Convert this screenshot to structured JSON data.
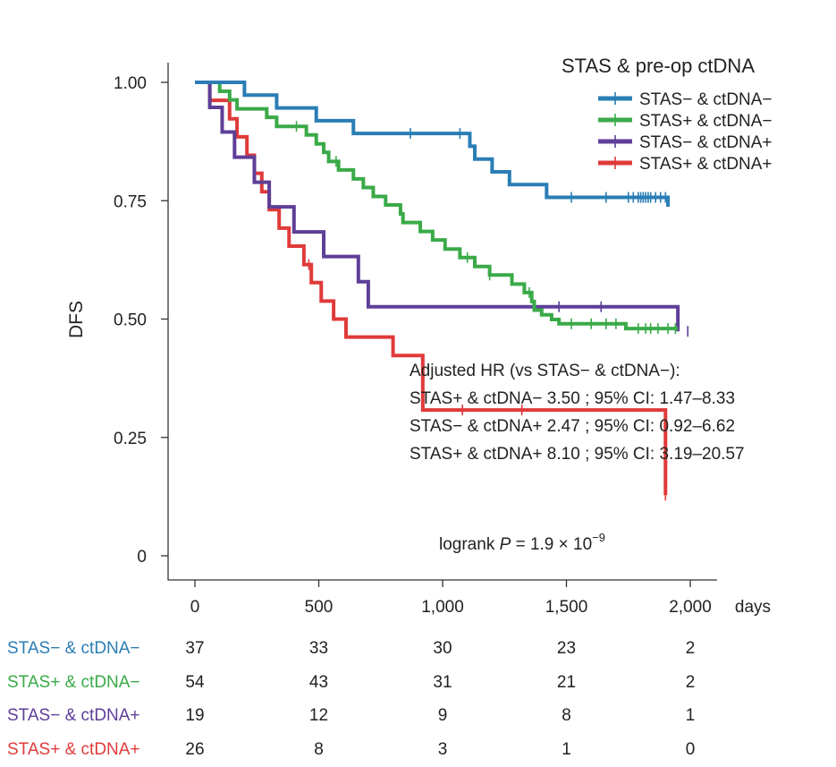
{
  "chart_data": {
    "type": "line",
    "subtype": "kaplan-meier",
    "title": "",
    "xlabel": "days",
    "ylabel": "DFS",
    "xlim": [
      -40,
      2100
    ],
    "ylim": [
      0,
      1.0
    ],
    "x_ticks": [
      0,
      500,
      1000,
      1500,
      2000
    ],
    "x_tick_labels": [
      "0",
      "500",
      "1,000",
      "1,500",
      "2,000"
    ],
    "y_ticks": [
      0,
      0.25,
      0.5,
      0.75,
      1.0
    ],
    "y_tick_labels": [
      "0",
      "0.25",
      "0.50",
      "0.75",
      "1.00"
    ],
    "legend": {
      "title": "STAS & pre-op ctDNA",
      "position": "top-right"
    },
    "series": [
      {
        "name": "STAS− & ctDNA−",
        "color": "#2a7db5",
        "times": [
          0,
          200,
          330,
          490,
          640,
          1110,
          1130,
          1200,
          1270,
          1420,
          1910
        ],
        "values": [
          1.0,
          0.973,
          0.946,
          0.919,
          0.892,
          0.865,
          0.838,
          0.811,
          0.784,
          0.757,
          0.737
        ],
        "censor_times": [
          870,
          1070,
          1520,
          1660,
          1750,
          1770,
          1790,
          1800,
          1810,
          1820,
          1830,
          1840,
          1860,
          1880,
          1900
        ]
      },
      {
        "name": "STAS+ & ctDNA−",
        "color": "#3aaa48",
        "times": [
          0,
          100,
          140,
          170,
          290,
          330,
          450,
          490,
          520,
          540,
          580,
          640,
          680,
          720,
          770,
          830,
          840,
          910,
          960,
          1010,
          1070,
          1130,
          1190,
          1280,
          1330,
          1360,
          1370,
          1400,
          1440,
          1470,
          1500,
          1520,
          1660,
          1740,
          1770,
          1950
        ],
        "values": [
          1.0,
          0.981,
          0.963,
          0.944,
          0.926,
          0.907,
          0.889,
          0.87,
          0.852,
          0.833,
          0.815,
          0.796,
          0.778,
          0.759,
          0.741,
          0.722,
          0.704,
          0.685,
          0.667,
          0.648,
          0.63,
          0.611,
          0.593,
          0.574,
          0.556,
          0.537,
          0.519,
          0.509,
          0.499,
          0.49,
          0.49,
          0.49,
          0.49,
          0.48,
          0.48,
          0.48
        ],
        "censor_times": [
          410,
          570,
          1100,
          1190,
          1350,
          1520,
          1600,
          1660,
          1700,
          1790,
          1820,
          1840,
          1870,
          1910,
          1940
        ]
      },
      {
        "name": "STAS− & ctDNA+",
        "color": "#5e3f98",
        "times": [
          0,
          60,
          110,
          160,
          240,
          300,
          400,
          520,
          660,
          700,
          1950
        ],
        "values": [
          1.0,
          0.947,
          0.895,
          0.842,
          0.789,
          0.737,
          0.684,
          0.632,
          0.579,
          0.526,
          0.474
        ],
        "censor_times": [
          1470,
          1640,
          1990
        ]
      },
      {
        "name": "STAS+ & ctDNA+",
        "color": "#e03a3a",
        "times": [
          0,
          60,
          140,
          170,
          210,
          240,
          270,
          300,
          340,
          380,
          440,
          470,
          510,
          560,
          610,
          800,
          920,
          1900
        ],
        "values": [
          1.0,
          0.962,
          0.923,
          0.885,
          0.846,
          0.808,
          0.769,
          0.731,
          0.692,
          0.654,
          0.615,
          0.577,
          0.538,
          0.5,
          0.462,
          0.423,
          0.308,
          0.128
        ],
        "censor_times": [
          460,
          1080,
          1320,
          1900
        ]
      }
    ],
    "annotations": {
      "hr_title": "Adjusted HR (vs STAS− & ctDNA−):",
      "hr_lines": [
        "STAS+ & ctDNA−  3.50 ; 95% CI: 1.47–8.33",
        "STAS− & ctDNA+  2.47 ; 95% CI: 0.92–6.62",
        "STAS+ & ctDNA+  8.10 ; 95% CI: 3.19–20.57"
      ],
      "logrank_prefix": "logrank ",
      "logrank_p": "P",
      "logrank_equals": " = 1.9 × 10",
      "logrank_exponent": "−9"
    },
    "risk_table": {
      "times": [
        0,
        500,
        1000,
        1500,
        2000
      ],
      "rows": [
        {
          "label": "STAS− & ctDNA−",
          "color": "#2a7db5",
          "counts": [
            "37",
            "33",
            "30",
            "23",
            "2"
          ]
        },
        {
          "label": "STAS+ & ctDNA−",
          "color": "#3aaa48",
          "counts": [
            "54",
            "43",
            "31",
            "21",
            "2"
          ]
        },
        {
          "label": "STAS− & ctDNA+",
          "color": "#5e3f98",
          "counts": [
            "19",
            "12",
            "9",
            "8",
            "1"
          ]
        },
        {
          "label": "STAS+ & ctDNA+",
          "color": "#e03a3a",
          "counts": [
            "26",
            "8",
            "3",
            "1",
            "0"
          ]
        }
      ]
    }
  }
}
